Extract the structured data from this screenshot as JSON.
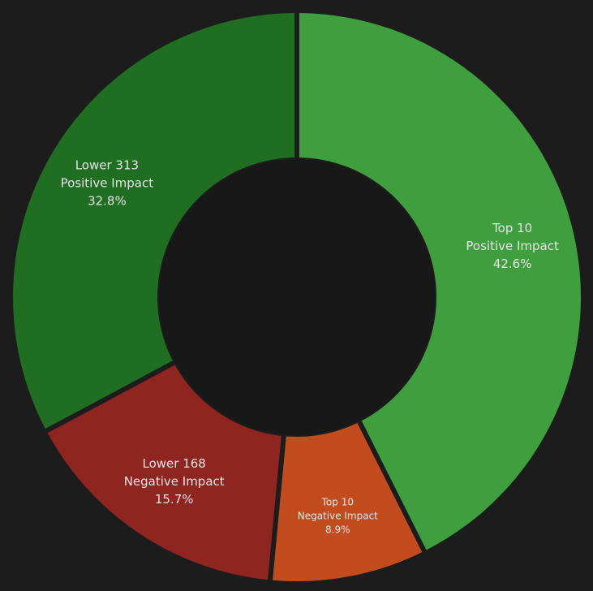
{
  "chart_data": {
    "type": "pie",
    "variant": "donut",
    "legend": "none",
    "slices": [
      {
        "label_line1": "Top 10",
        "label_line2": "Positive Impact",
        "percent_label": "42.6%",
        "value": 42.6,
        "color": "#3f9f3f"
      },
      {
        "label_line1": "Top 10",
        "label_line2": "Negative Impact",
        "percent_label": "8.9%",
        "value": 8.9,
        "color": "#c34c1f"
      },
      {
        "label_line1": "Lower 168",
        "label_line2": "Negative Impact",
        "percent_label": "15.7%",
        "value": 15.7,
        "color": "#8e2521"
      },
      {
        "label_line1": "Lower 313",
        "label_line2": "Positive Impact",
        "percent_label": "32.8%",
        "value": 32.8,
        "color": "#1f6e22"
      }
    ]
  }
}
